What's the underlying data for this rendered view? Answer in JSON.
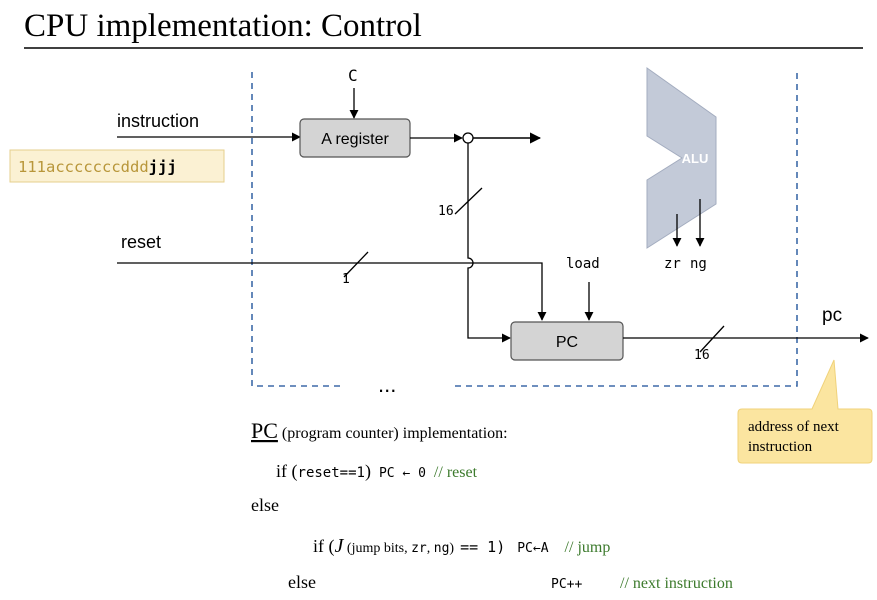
{
  "slide": {
    "title": "CPU implementation: Control"
  },
  "diagram": {
    "instruction_label": "instruction",
    "instruction_bits_prefix": "111acccccccddd",
    "instruction_bits_jump": "jjj",
    "c_label": "C",
    "a_register_label": "A register",
    "bus_width_a": "16",
    "reset_label": "reset",
    "reset_width": "1",
    "load_label": "load",
    "pc_box_label": "PC",
    "pc_output_label": "pc",
    "pc_out_width": "16",
    "alu_label": "ALU",
    "zr_label": "zr",
    "ng_label": "ng",
    "ellipsis": "...",
    "callout_line1": "address of next",
    "callout_line2": "instruction"
  },
  "code": {
    "heading_pc": "PC",
    "heading_rest": " (program counter) implementation:",
    "l1_if": "if (",
    "l1_cond": "reset==1",
    "l1_close": ")",
    "l1_assign": "PC ← 0",
    "l1_comment": "// reset",
    "l2_else": "else",
    "l3_if": "if (",
    "l3_J": "J",
    "l3_paren": " (",
    "l3_args1": "jump bits, ",
    "l3_zr": "zr",
    "l3_comma": ", ",
    "l3_ng": "ng",
    "l3_close": ")",
    "l3_eq": "== 1)",
    "l3_assign": "PC←A",
    "l3_comment": "// jump",
    "l4_else": "else",
    "l4_assign": "PC++",
    "l4_comment": "// next instruction"
  },
  "colors": {
    "dashed_border": "#3e6aa8",
    "box_fill": "#d4d4d4",
    "alu_fill": "#c3cad8",
    "instr_fill": "#fbf1d3",
    "instr_text": "#b8963a",
    "callout_fill": "#fbe5a0",
    "comment_green": "#3c7a2c"
  }
}
